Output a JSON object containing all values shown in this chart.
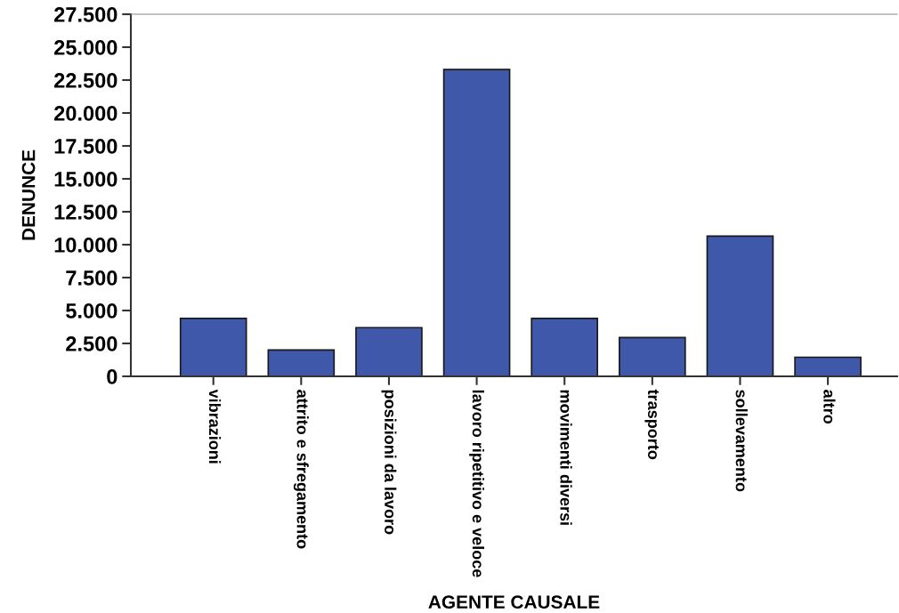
{
  "chart_data": {
    "type": "bar",
    "xlabel": "AGENTE CAUSALE",
    "ylabel": "DENUNCE",
    "categories": [
      "vibrazioni",
      "attrito e sfregamento",
      "posizioni da lavoro",
      "lavoro ripetitivo e veloce",
      "movimenti diversi",
      "trasporto",
      "sollevamento",
      "altro"
    ],
    "values": [
      4400,
      2000,
      3700,
      23300,
      4400,
      2950,
      10650,
      1450
    ],
    "color": "#3f58a9",
    "ylim": [
      0,
      27500
    ],
    "yticks": [
      0,
      {
        "value": 2500,
        "label": "2.500"
      },
      {
        "value": 5000,
        "label": "5.000"
      },
      {
        "value": 7500,
        "label": "7.500"
      },
      {
        "value": 10000,
        "label": "10.000"
      },
      {
        "value": 12500,
        "label": "12.500"
      },
      {
        "value": 15000,
        "label": "15.000"
      },
      {
        "value": 17500,
        "label": "17.500"
      },
      {
        "value": 20000,
        "label": "20.000"
      },
      {
        "value": 22500,
        "label": "22.500"
      },
      {
        "value": 25000,
        "label": "25.000"
      },
      {
        "value": 27500,
        "label": "27.500"
      }
    ],
    "grid": false,
    "legend": false
  }
}
